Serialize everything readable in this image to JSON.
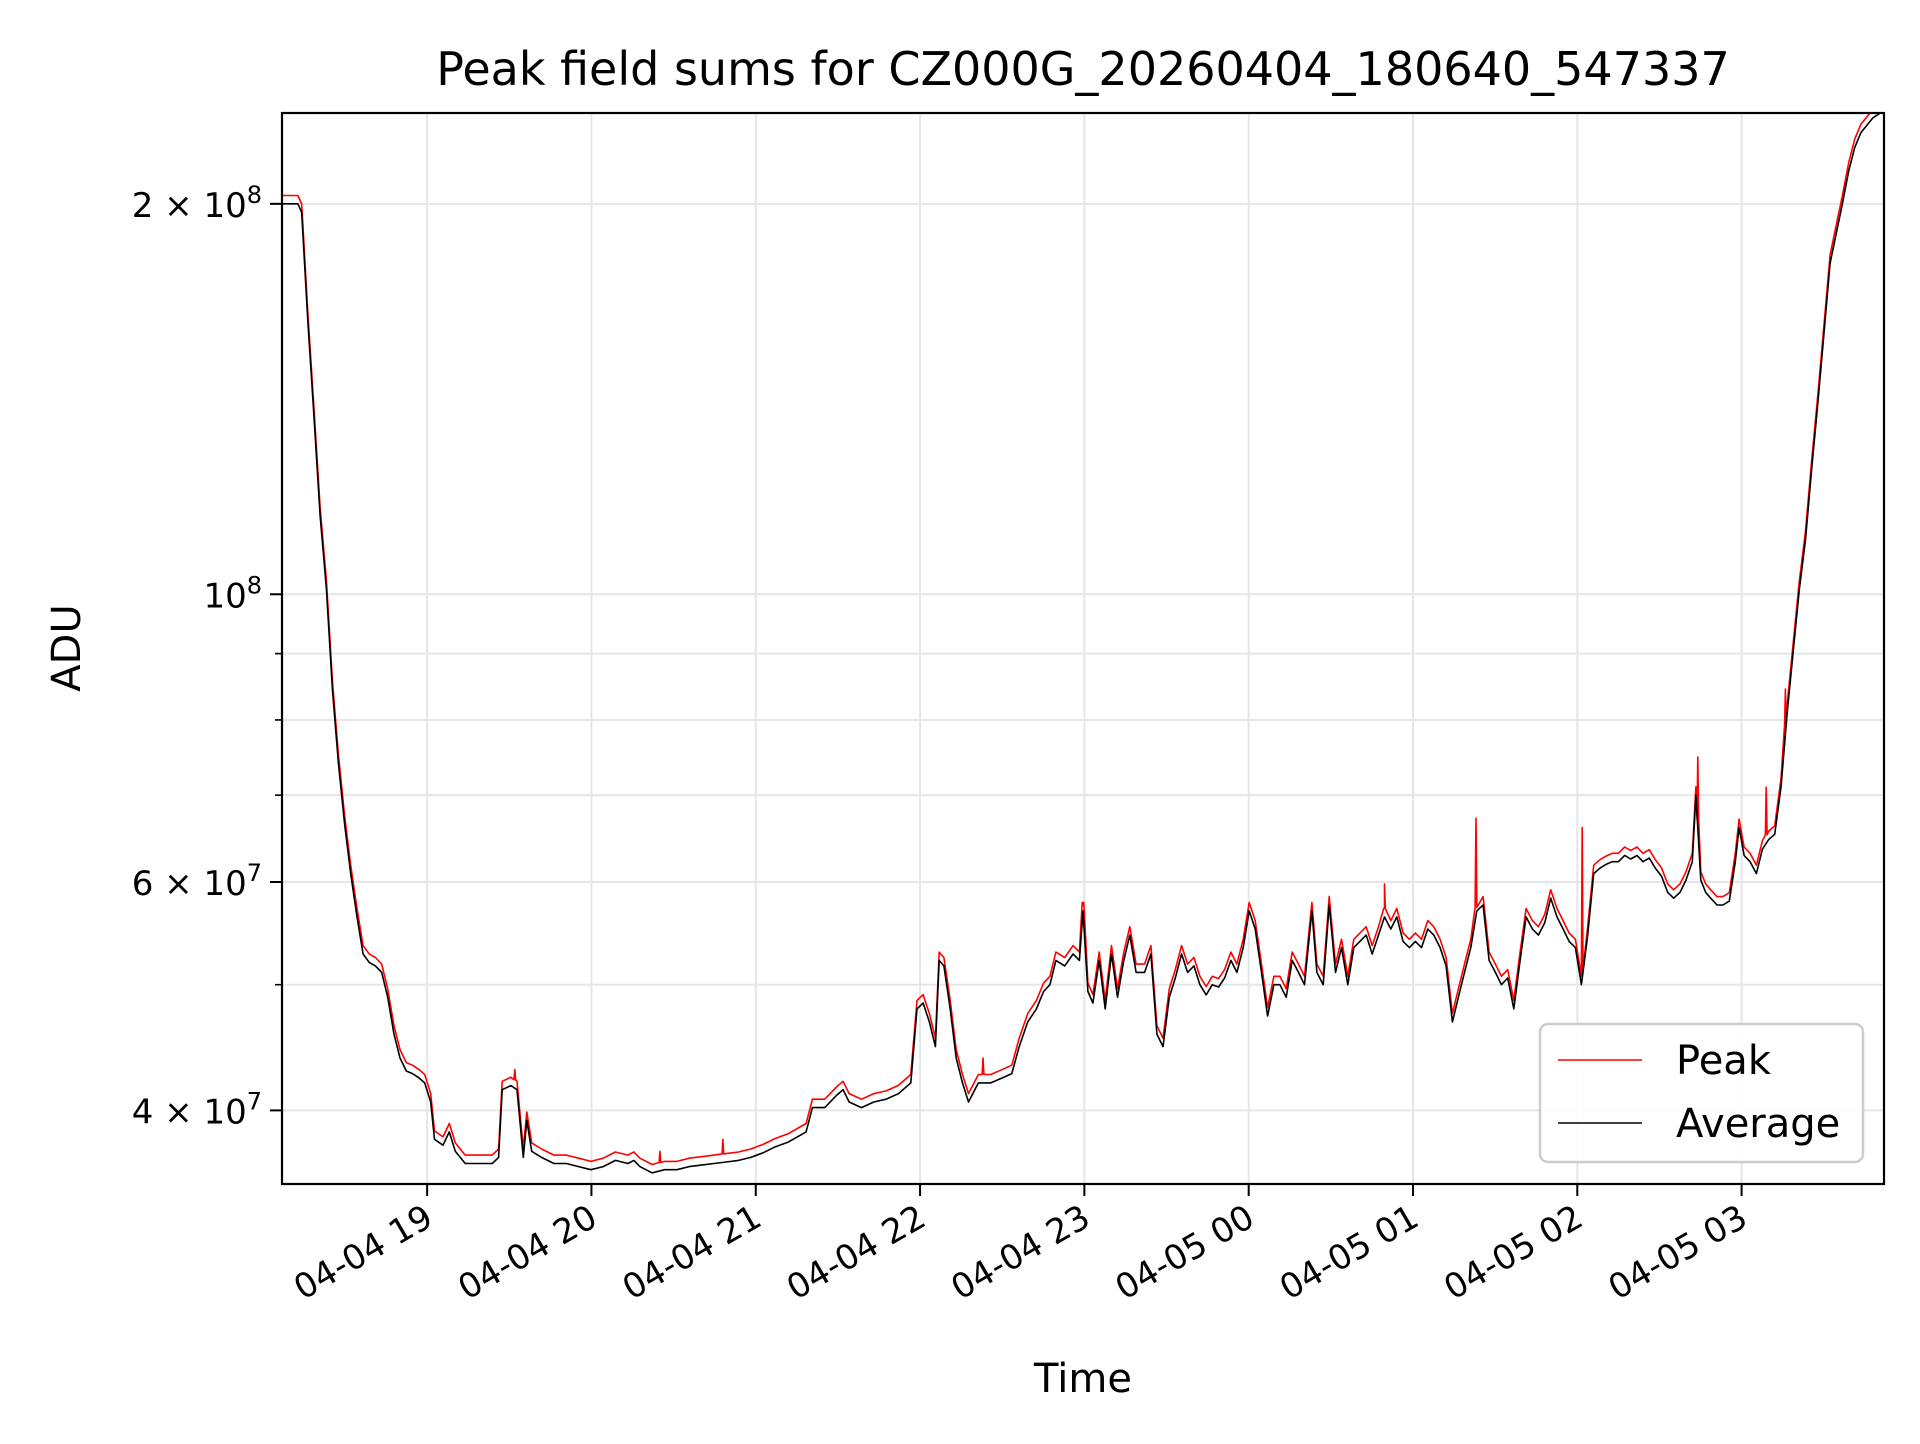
{
  "chart_data": {
    "type": "line",
    "title": "Peak field sums for CZ000G_20260404_180640_547337",
    "xlabel": "Time",
    "ylabel": "ADU",
    "x_units": "minutes since 2026-04-04 18:00",
    "y_units_scale": 10000000,
    "y_scale_type": "log",
    "xlim": [
      7.0,
      592.0
    ],
    "ylim": [
      3.51,
      23.5
    ],
    "grid": true,
    "legend_position": "lower-right",
    "x_ticks": [
      {
        "value": 60,
        "label": "04-04 19"
      },
      {
        "value": 120,
        "label": "04-04 20"
      },
      {
        "value": 180,
        "label": "04-04 21"
      },
      {
        "value": 240,
        "label": "04-04 22"
      },
      {
        "value": 300,
        "label": "04-04 23"
      },
      {
        "value": 360,
        "label": "04-05 00"
      },
      {
        "value": 420,
        "label": "04-05 01"
      },
      {
        "value": 480,
        "label": "04-05 02"
      },
      {
        "value": 540,
        "label": "04-05 03"
      }
    ],
    "y_ticks": [
      {
        "value": 20,
        "mantissa": "2",
        "times": "×",
        "base": "10",
        "exp": "8"
      },
      {
        "value": 10,
        "mantissa": "",
        "times": "",
        "base": "10",
        "exp": "8"
      },
      {
        "value": 6,
        "mantissa": "6",
        "times": "×",
        "base": "10",
        "exp": "7"
      },
      {
        "value": 4,
        "mantissa": "4",
        "times": "×",
        "base": "10",
        "exp": "7"
      }
    ],
    "y_minor_ticks": [
      5,
      7,
      8,
      9
    ],
    "series": [
      {
        "name": "Peak",
        "color": "#ff0000",
        "ratio_to_average": 1.015,
        "spikes": [
          [
            92.0,
            4.3
          ],
          [
            145.0,
            3.72
          ],
          [
            168.0,
            3.8
          ],
          [
            263.0,
            4.39
          ],
          [
            299.5,
            5.76
          ],
          [
            409.6,
            5.98
          ],
          [
            443.0,
            6.72
          ],
          [
            481.8,
            6.61
          ],
          [
            524.0,
            7.49
          ],
          [
            549.0,
            7.1
          ],
          [
            556.0,
            8.45
          ]
        ]
      },
      {
        "name": "Average",
        "color": "#000000"
      }
    ],
    "average": [
      [
        7.0,
        20.0
      ],
      [
        12.8,
        20.0
      ],
      [
        14.2,
        19.7
      ],
      [
        16.4,
        16.3
      ],
      [
        18.7,
        13.7
      ],
      [
        20.9,
        11.5
      ],
      [
        23.2,
        10.1
      ],
      [
        25.4,
        8.45
      ],
      [
        27.6,
        7.41
      ],
      [
        29.9,
        6.64
      ],
      [
        32.1,
        6.09
      ],
      [
        34.4,
        5.64
      ],
      [
        36.6,
        5.28
      ],
      [
        38.9,
        5.2
      ],
      [
        41.1,
        5.17
      ],
      [
        43.4,
        5.11
      ],
      [
        45.6,
        4.89
      ],
      [
        47.9,
        4.58
      ],
      [
        50.1,
        4.39
      ],
      [
        52.4,
        4.29
      ],
      [
        54.6,
        4.27
      ],
      [
        56.9,
        4.24
      ],
      [
        59.1,
        4.2
      ],
      [
        61.3,
        4.06
      ],
      [
        62.7,
        3.8
      ],
      [
        65.8,
        3.76
      ],
      [
        68.1,
        3.85
      ],
      [
        70.3,
        3.72
      ],
      [
        73.9,
        3.64
      ],
      [
        79.3,
        3.64
      ],
      [
        83.8,
        3.64
      ],
      [
        86.1,
        3.68
      ],
      [
        87.4,
        4.15
      ],
      [
        90.6,
        4.18
      ],
      [
        92.8,
        4.15
      ],
      [
        95.1,
        3.68
      ],
      [
        96.4,
        3.93
      ],
      [
        98.2,
        3.72
      ],
      [
        101.8,
        3.68
      ],
      [
        106.3,
        3.64
      ],
      [
        110.8,
        3.64
      ],
      [
        115.3,
        3.62
      ],
      [
        119.8,
        3.6
      ],
      [
        124.3,
        3.62
      ],
      [
        128.8,
        3.66
      ],
      [
        133.3,
        3.64
      ],
      [
        135.5,
        3.66
      ],
      [
        137.7,
        3.62
      ],
      [
        142.2,
        3.58
      ],
      [
        146.7,
        3.6
      ],
      [
        151.2,
        3.6
      ],
      [
        155.7,
        3.62
      ],
      [
        160.2,
        3.63
      ],
      [
        164.7,
        3.64
      ],
      [
        169.2,
        3.65
      ],
      [
        173.7,
        3.66
      ],
      [
        178.2,
        3.68
      ],
      [
        182.7,
        3.71
      ],
      [
        187.2,
        3.75
      ],
      [
        191.7,
        3.78
      ],
      [
        198.4,
        3.85
      ],
      [
        200.7,
        4.02
      ],
      [
        205.2,
        4.02
      ],
      [
        209.6,
        4.11
      ],
      [
        211.9,
        4.15
      ],
      [
        214.1,
        4.06
      ],
      [
        218.6,
        4.02
      ],
      [
        223.1,
        4.06
      ],
      [
        227.6,
        4.08
      ],
      [
        232.1,
        4.12
      ],
      [
        236.6,
        4.2
      ],
      [
        238.9,
        4.79
      ],
      [
        241.1,
        4.84
      ],
      [
        243.4,
        4.68
      ],
      [
        245.6,
        4.48
      ],
      [
        247.0,
        5.22
      ],
      [
        248.7,
        5.17
      ],
      [
        251.0,
        4.79
      ],
      [
        253.2,
        4.39
      ],
      [
        255.5,
        4.2
      ],
      [
        257.7,
        4.06
      ],
      [
        261.3,
        4.2
      ],
      [
        265.8,
        4.2
      ],
      [
        270.3,
        4.24
      ],
      [
        273.5,
        4.27
      ],
      [
        276.2,
        4.48
      ],
      [
        279.3,
        4.68
      ],
      [
        282.5,
        4.79
      ],
      [
        285.1,
        4.94
      ],
      [
        287.4,
        5.0
      ],
      [
        289.6,
        5.22
      ],
      [
        292.8,
        5.17
      ],
      [
        295.9,
        5.28
      ],
      [
        298.2,
        5.22
      ],
      [
        299.5,
        5.7
      ],
      [
        301.3,
        4.94
      ],
      [
        303.1,
        4.84
      ],
      [
        305.4,
        5.22
      ],
      [
        307.6,
        4.79
      ],
      [
        309.9,
        5.28
      ],
      [
        312.1,
        4.89
      ],
      [
        314.4,
        5.22
      ],
      [
        316.6,
        5.46
      ],
      [
        318.9,
        5.11
      ],
      [
        322.0,
        5.11
      ],
      [
        324.3,
        5.28
      ],
      [
        326.5,
        4.58
      ],
      [
        328.7,
        4.48
      ],
      [
        331.0,
        4.89
      ],
      [
        333.2,
        5.06
      ],
      [
        335.5,
        5.28
      ],
      [
        337.7,
        5.11
      ],
      [
        340.0,
        5.17
      ],
      [
        342.2,
        5.0
      ],
      [
        344.5,
        4.91
      ],
      [
        346.7,
        5.0
      ],
      [
        349.0,
        4.98
      ],
      [
        351.2,
        5.06
      ],
      [
        353.5,
        5.22
      ],
      [
        355.7,
        5.11
      ],
      [
        358.0,
        5.34
      ],
      [
        360.2,
        5.7
      ],
      [
        362.4,
        5.52
      ],
      [
        364.7,
        5.11
      ],
      [
        366.9,
        4.73
      ],
      [
        369.2,
        5.0
      ],
      [
        371.4,
        5.0
      ],
      [
        373.7,
        4.89
      ],
      [
        375.9,
        5.22
      ],
      [
        378.2,
        5.11
      ],
      [
        380.4,
        5.0
      ],
      [
        383.1,
        5.7
      ],
      [
        384.9,
        5.11
      ],
      [
        387.2,
        5.0
      ],
      [
        389.4,
        5.76
      ],
      [
        391.7,
        5.11
      ],
      [
        393.9,
        5.34
      ],
      [
        396.2,
        5.0
      ],
      [
        398.4,
        5.34
      ],
      [
        402.9,
        5.46
      ],
      [
        405.1,
        5.28
      ],
      [
        407.4,
        5.46
      ],
      [
        409.6,
        5.64
      ],
      [
        411.9,
        5.52
      ],
      [
        414.1,
        5.64
      ],
      [
        416.4,
        5.4
      ],
      [
        418.7,
        5.34
      ],
      [
        420.9,
        5.4
      ],
      [
        423.1,
        5.34
      ],
      [
        425.4,
        5.52
      ],
      [
        427.6,
        5.46
      ],
      [
        429.9,
        5.34
      ],
      [
        432.1,
        5.17
      ],
      [
        434.4,
        4.68
      ],
      [
        436.6,
        4.89
      ],
      [
        438.8,
        5.11
      ],
      [
        441.1,
        5.34
      ],
      [
        443.3,
        5.7
      ],
      [
        445.6,
        5.76
      ],
      [
        447.8,
        5.22
      ],
      [
        450.1,
        5.11
      ],
      [
        452.3,
        5.0
      ],
      [
        454.6,
        5.06
      ],
      [
        456.8,
        4.79
      ],
      [
        459.1,
        5.22
      ],
      [
        461.3,
        5.64
      ],
      [
        463.6,
        5.52
      ],
      [
        465.8,
        5.46
      ],
      [
        468.1,
        5.58
      ],
      [
        470.3,
        5.83
      ],
      [
        472.6,
        5.64
      ],
      [
        474.8,
        5.52
      ],
      [
        477.0,
        5.4
      ],
      [
        479.3,
        5.34
      ],
      [
        481.5,
        5.0
      ],
      [
        483.8,
        5.46
      ],
      [
        486.0,
        6.09
      ],
      [
        488.3,
        6.15
      ],
      [
        490.5,
        6.19
      ],
      [
        492.8,
        6.22
      ],
      [
        495.0,
        6.22
      ],
      [
        497.3,
        6.29
      ],
      [
        499.5,
        6.25
      ],
      [
        501.8,
        6.29
      ],
      [
        504.0,
        6.22
      ],
      [
        506.3,
        6.26
      ],
      [
        508.5,
        6.15
      ],
      [
        510.8,
        6.06
      ],
      [
        513.0,
        5.89
      ],
      [
        515.2,
        5.83
      ],
      [
        517.5,
        5.89
      ],
      [
        519.7,
        6.02
      ],
      [
        522.0,
        6.22
      ],
      [
        523.3,
        7.0
      ],
      [
        525.1,
        6.02
      ],
      [
        526.9,
        5.89
      ],
      [
        528.7,
        5.83
      ],
      [
        531.0,
        5.76
      ],
      [
        533.2,
        5.76
      ],
      [
        535.5,
        5.8
      ],
      [
        537.7,
        6.22
      ],
      [
        539.1,
        6.61
      ],
      [
        540.9,
        6.29
      ],
      [
        543.1,
        6.22
      ],
      [
        545.4,
        6.09
      ],
      [
        547.6,
        6.36
      ],
      [
        549.9,
        6.47
      ],
      [
        552.1,
        6.53
      ],
      [
        554.4,
        7.1
      ],
      [
        556.6,
        8.09
      ],
      [
        558.8,
        9.02
      ],
      [
        561.1,
        10.1
      ],
      [
        563.3,
        11.0
      ],
      [
        565.6,
        12.5
      ],
      [
        567.8,
        14.0
      ],
      [
        570.1,
        15.9
      ],
      [
        572.3,
        18.0
      ],
      [
        574.6,
        19.0
      ],
      [
        576.8,
        20.0
      ],
      [
        579.1,
        21.2
      ],
      [
        581.3,
        22.1
      ],
      [
        583.6,
        22.7
      ],
      [
        585.8,
        23.0
      ],
      [
        588.0,
        23.3
      ],
      [
        590.7,
        23.5
      ]
    ]
  }
}
